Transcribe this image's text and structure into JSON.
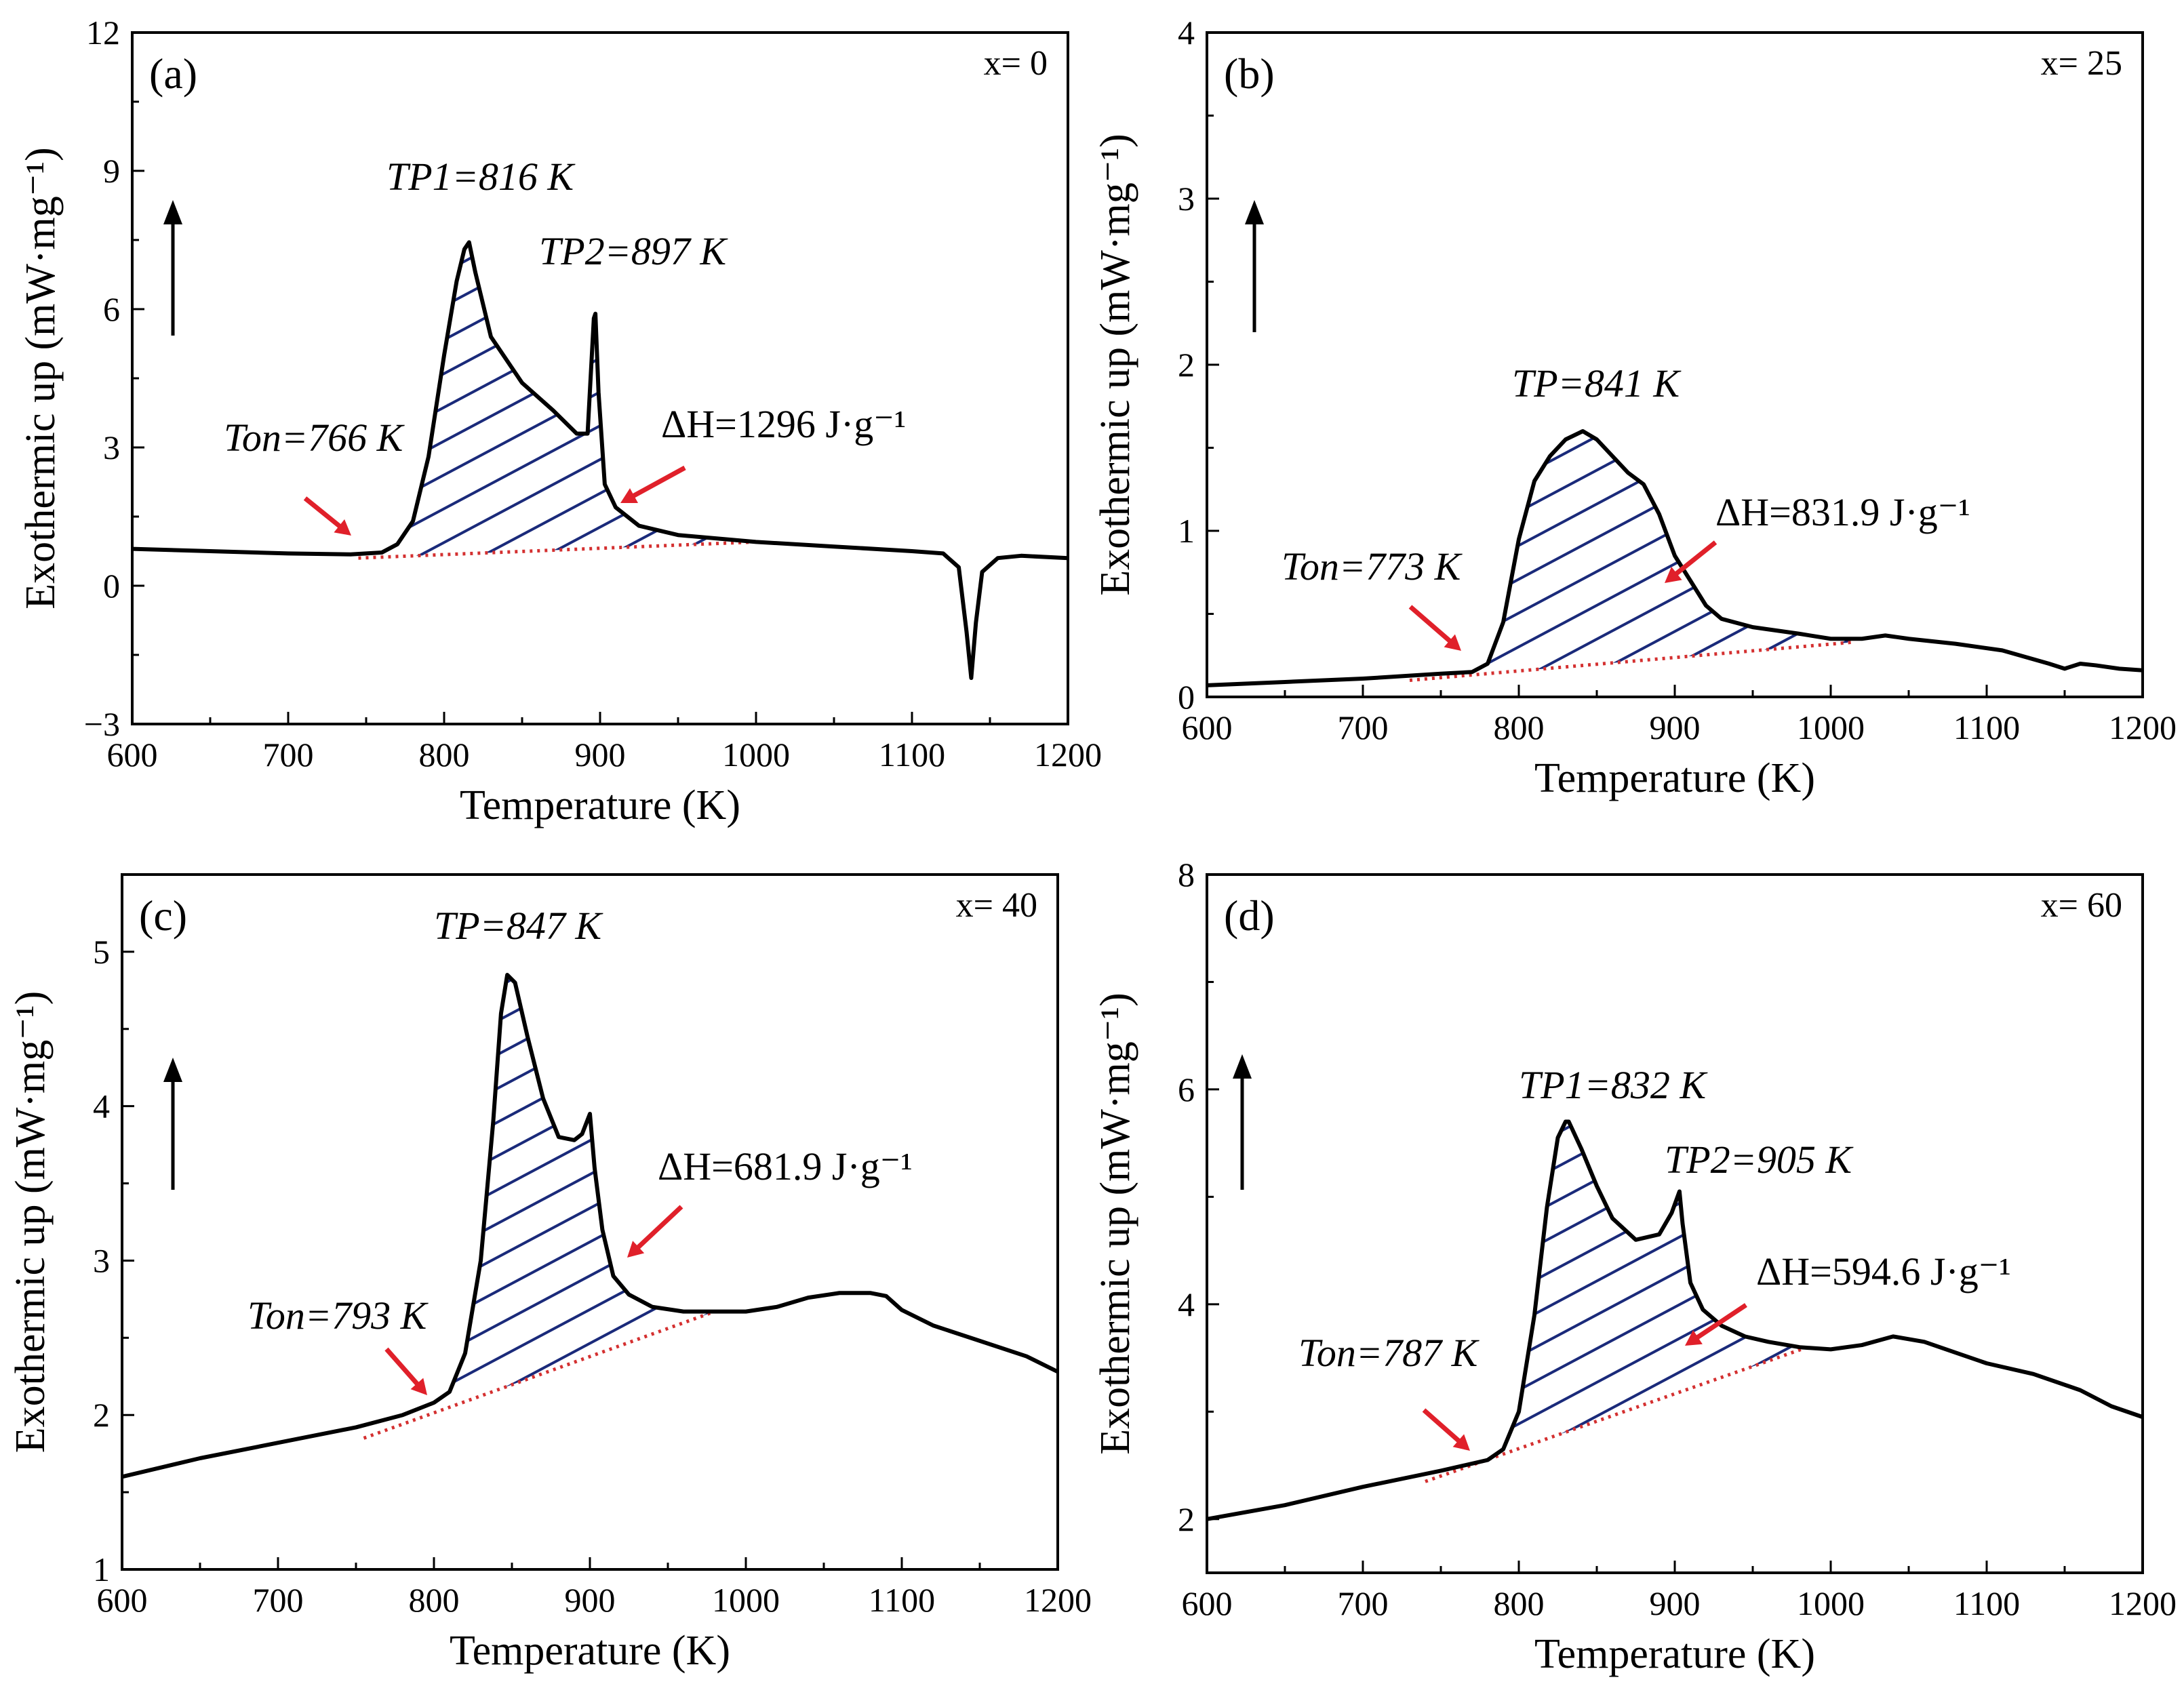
{
  "colors": {
    "curve": "#000000",
    "hatch": "#1a2a7a",
    "baseline": "#d43030",
    "arrow": "#e0202a"
  },
  "chart_data": [
    {
      "type": "line",
      "panel": "(a)",
      "composition": "x= 0",
      "xlabel": "Temperature (K)",
      "ylabel": "Exothermic up (mW·mg⁻¹)",
      "xlim": [
        600,
        1200
      ],
      "ylim": [
        -3,
        12
      ],
      "xticks": [
        600,
        700,
        800,
        900,
        1000,
        1100,
        1200
      ],
      "yticks": [
        -3,
        0,
        3,
        6,
        9,
        12
      ],
      "x": [
        600,
        650,
        700,
        740,
        760,
        770,
        780,
        790,
        800,
        808,
        813,
        816,
        820,
        830,
        850,
        870,
        885,
        892,
        896,
        897,
        899,
        903,
        910,
        925,
        950,
        1000,
        1050,
        1100,
        1120,
        1130,
        1135,
        1138,
        1141,
        1145,
        1155,
        1170,
        1200
      ],
      "y": [
        0.8,
        0.75,
        0.7,
        0.68,
        0.72,
        0.9,
        1.4,
        2.8,
        5.0,
        6.6,
        7.3,
        7.45,
        6.8,
        5.4,
        4.4,
        3.8,
        3.3,
        3.3,
        5.8,
        5.9,
        4.2,
        2.2,
        1.7,
        1.3,
        1.1,
        0.95,
        0.85,
        0.75,
        0.7,
        0.4,
        -1.0,
        -2.0,
        -0.8,
        0.3,
        0.6,
        0.65,
        0.6
      ],
      "baseline_x": [
        745,
        1000
      ],
      "baseline_y": [
        0.6,
        0.95
      ],
      "shade_x_range": [
        766,
        1000
      ],
      "annotations": {
        "onset": {
          "label": "Ton=766 K",
          "value": 766
        },
        "peaks": [
          {
            "label": "TP1=816 K",
            "value": 816
          },
          {
            "label": "TP2=897 K",
            "value": 897
          }
        ],
        "enthalpy": {
          "label": "ΔH=1296  J·g⁻¹",
          "value": 1296
        }
      }
    },
    {
      "type": "line",
      "panel": "(b)",
      "composition": "x= 25",
      "xlabel": "Temperature (K)",
      "ylabel": "Exothermic up (mW·mg⁻¹)",
      "xlim": [
        600,
        1200
      ],
      "ylim": [
        0,
        4
      ],
      "xticks": [
        600,
        700,
        800,
        900,
        1000,
        1100,
        1200
      ],
      "yticks": [
        0,
        1,
        2,
        3,
        4
      ],
      "x": [
        600,
        650,
        700,
        750,
        770,
        780,
        790,
        800,
        810,
        820,
        830,
        841,
        850,
        860,
        870,
        880,
        890,
        900,
        910,
        920,
        930,
        950,
        980,
        1000,
        1020,
        1035,
        1050,
        1080,
        1110,
        1140,
        1150,
        1160,
        1170,
        1185,
        1200
      ],
      "y": [
        0.07,
        0.09,
        0.11,
        0.14,
        0.15,
        0.2,
        0.45,
        0.95,
        1.3,
        1.45,
        1.55,
        1.6,
        1.55,
        1.45,
        1.35,
        1.28,
        1.1,
        0.85,
        0.7,
        0.55,
        0.47,
        0.42,
        0.38,
        0.35,
        0.35,
        0.37,
        0.35,
        0.32,
        0.28,
        0.2,
        0.17,
        0.2,
        0.19,
        0.17,
        0.16
      ],
      "baseline_x": [
        730,
        1015
      ],
      "baseline_y": [
        0.1,
        0.33
      ],
      "shade_x_range": [
        773,
        1015
      ],
      "annotations": {
        "onset": {
          "label": "Ton=773 K",
          "value": 773
        },
        "peaks": [
          {
            "label": "TP=841 K",
            "value": 841
          }
        ],
        "enthalpy": {
          "label": "ΔH=831.9  J·g⁻¹",
          "value": 831.9
        }
      }
    },
    {
      "type": "line",
      "panel": "(c)",
      "composition": "x= 40",
      "xlabel": "Temperature (K)",
      "ylabel": "Exothermic up (mW·mg⁻¹)",
      "xlim": [
        600,
        1200
      ],
      "ylim": [
        1,
        5.5
      ],
      "xticks": [
        600,
        700,
        800,
        900,
        1000,
        1100,
        1200
      ],
      "yticks": [
        1,
        2,
        3,
        4,
        5
      ],
      "x": [
        600,
        650,
        700,
        750,
        780,
        800,
        810,
        820,
        830,
        838,
        843,
        847,
        852,
        860,
        870,
        880,
        890,
        895,
        900,
        903,
        908,
        915,
        925,
        940,
        960,
        980,
        1000,
        1020,
        1040,
        1060,
        1080,
        1090,
        1100,
        1120,
        1150,
        1180,
        1200
      ],
      "y": [
        1.6,
        1.72,
        1.82,
        1.92,
        2.0,
        2.08,
        2.15,
        2.4,
        3.0,
        3.9,
        4.6,
        4.85,
        4.8,
        4.45,
        4.05,
        3.8,
        3.78,
        3.82,
        3.95,
        3.6,
        3.2,
        2.9,
        2.78,
        2.7,
        2.67,
        2.67,
        2.67,
        2.7,
        2.76,
        2.79,
        2.79,
        2.77,
        2.68,
        2.58,
        2.48,
        2.38,
        2.28
      ],
      "baseline_x": [
        755,
        980
      ],
      "baseline_y": [
        1.85,
        2.67
      ],
      "shade_x_range": [
        793,
        980
      ],
      "annotations": {
        "onset": {
          "label": "Ton=793 K",
          "value": 793
        },
        "peaks": [
          {
            "label": "TP=847 K",
            "value": 847
          }
        ],
        "enthalpy": {
          "label": "ΔH=681.9  J·g⁻¹",
          "value": 681.9
        }
      }
    },
    {
      "type": "line",
      "panel": "(d)",
      "composition": "x= 60",
      "xlabel": "Temperature (K)",
      "ylabel": "Exothermic up (mW·mg⁻¹)",
      "xlim": [
        600,
        1200
      ],
      "ylim": [
        1.5,
        8
      ],
      "xticks": [
        600,
        700,
        800,
        900,
        1000,
        1100,
        1200
      ],
      "yticks": [
        2,
        4,
        6,
        8
      ],
      "x": [
        600,
        650,
        700,
        750,
        780,
        790,
        800,
        810,
        818,
        825,
        830,
        832,
        840,
        850,
        860,
        875,
        890,
        898,
        903,
        905,
        910,
        918,
        930,
        945,
        960,
        980,
        1000,
        1020,
        1040,
        1060,
        1080,
        1100,
        1130,
        1160,
        1180,
        1200
      ],
      "y": [
        2.0,
        2.13,
        2.3,
        2.45,
        2.55,
        2.65,
        3.0,
        3.9,
        4.9,
        5.55,
        5.7,
        5.7,
        5.45,
        5.1,
        4.8,
        4.6,
        4.65,
        4.85,
        5.05,
        4.75,
        4.2,
        3.95,
        3.8,
        3.7,
        3.65,
        3.6,
        3.58,
        3.62,
        3.7,
        3.65,
        3.55,
        3.45,
        3.35,
        3.2,
        3.05,
        2.95
      ],
      "baseline_x": [
        740,
        985
      ],
      "baseline_y": [
        2.35,
        3.6
      ],
      "shade_x_range": [
        787,
        985
      ],
      "annotations": {
        "onset": {
          "label": "Ton=787 K",
          "value": 787
        },
        "peaks": [
          {
            "label": "TP1=832 K",
            "value": 832
          },
          {
            "label": "TP2=905 K",
            "value": 905
          }
        ],
        "enthalpy": {
          "label": "ΔH=594.6  J·g⁻¹",
          "value": 594.6
        }
      }
    }
  ]
}
